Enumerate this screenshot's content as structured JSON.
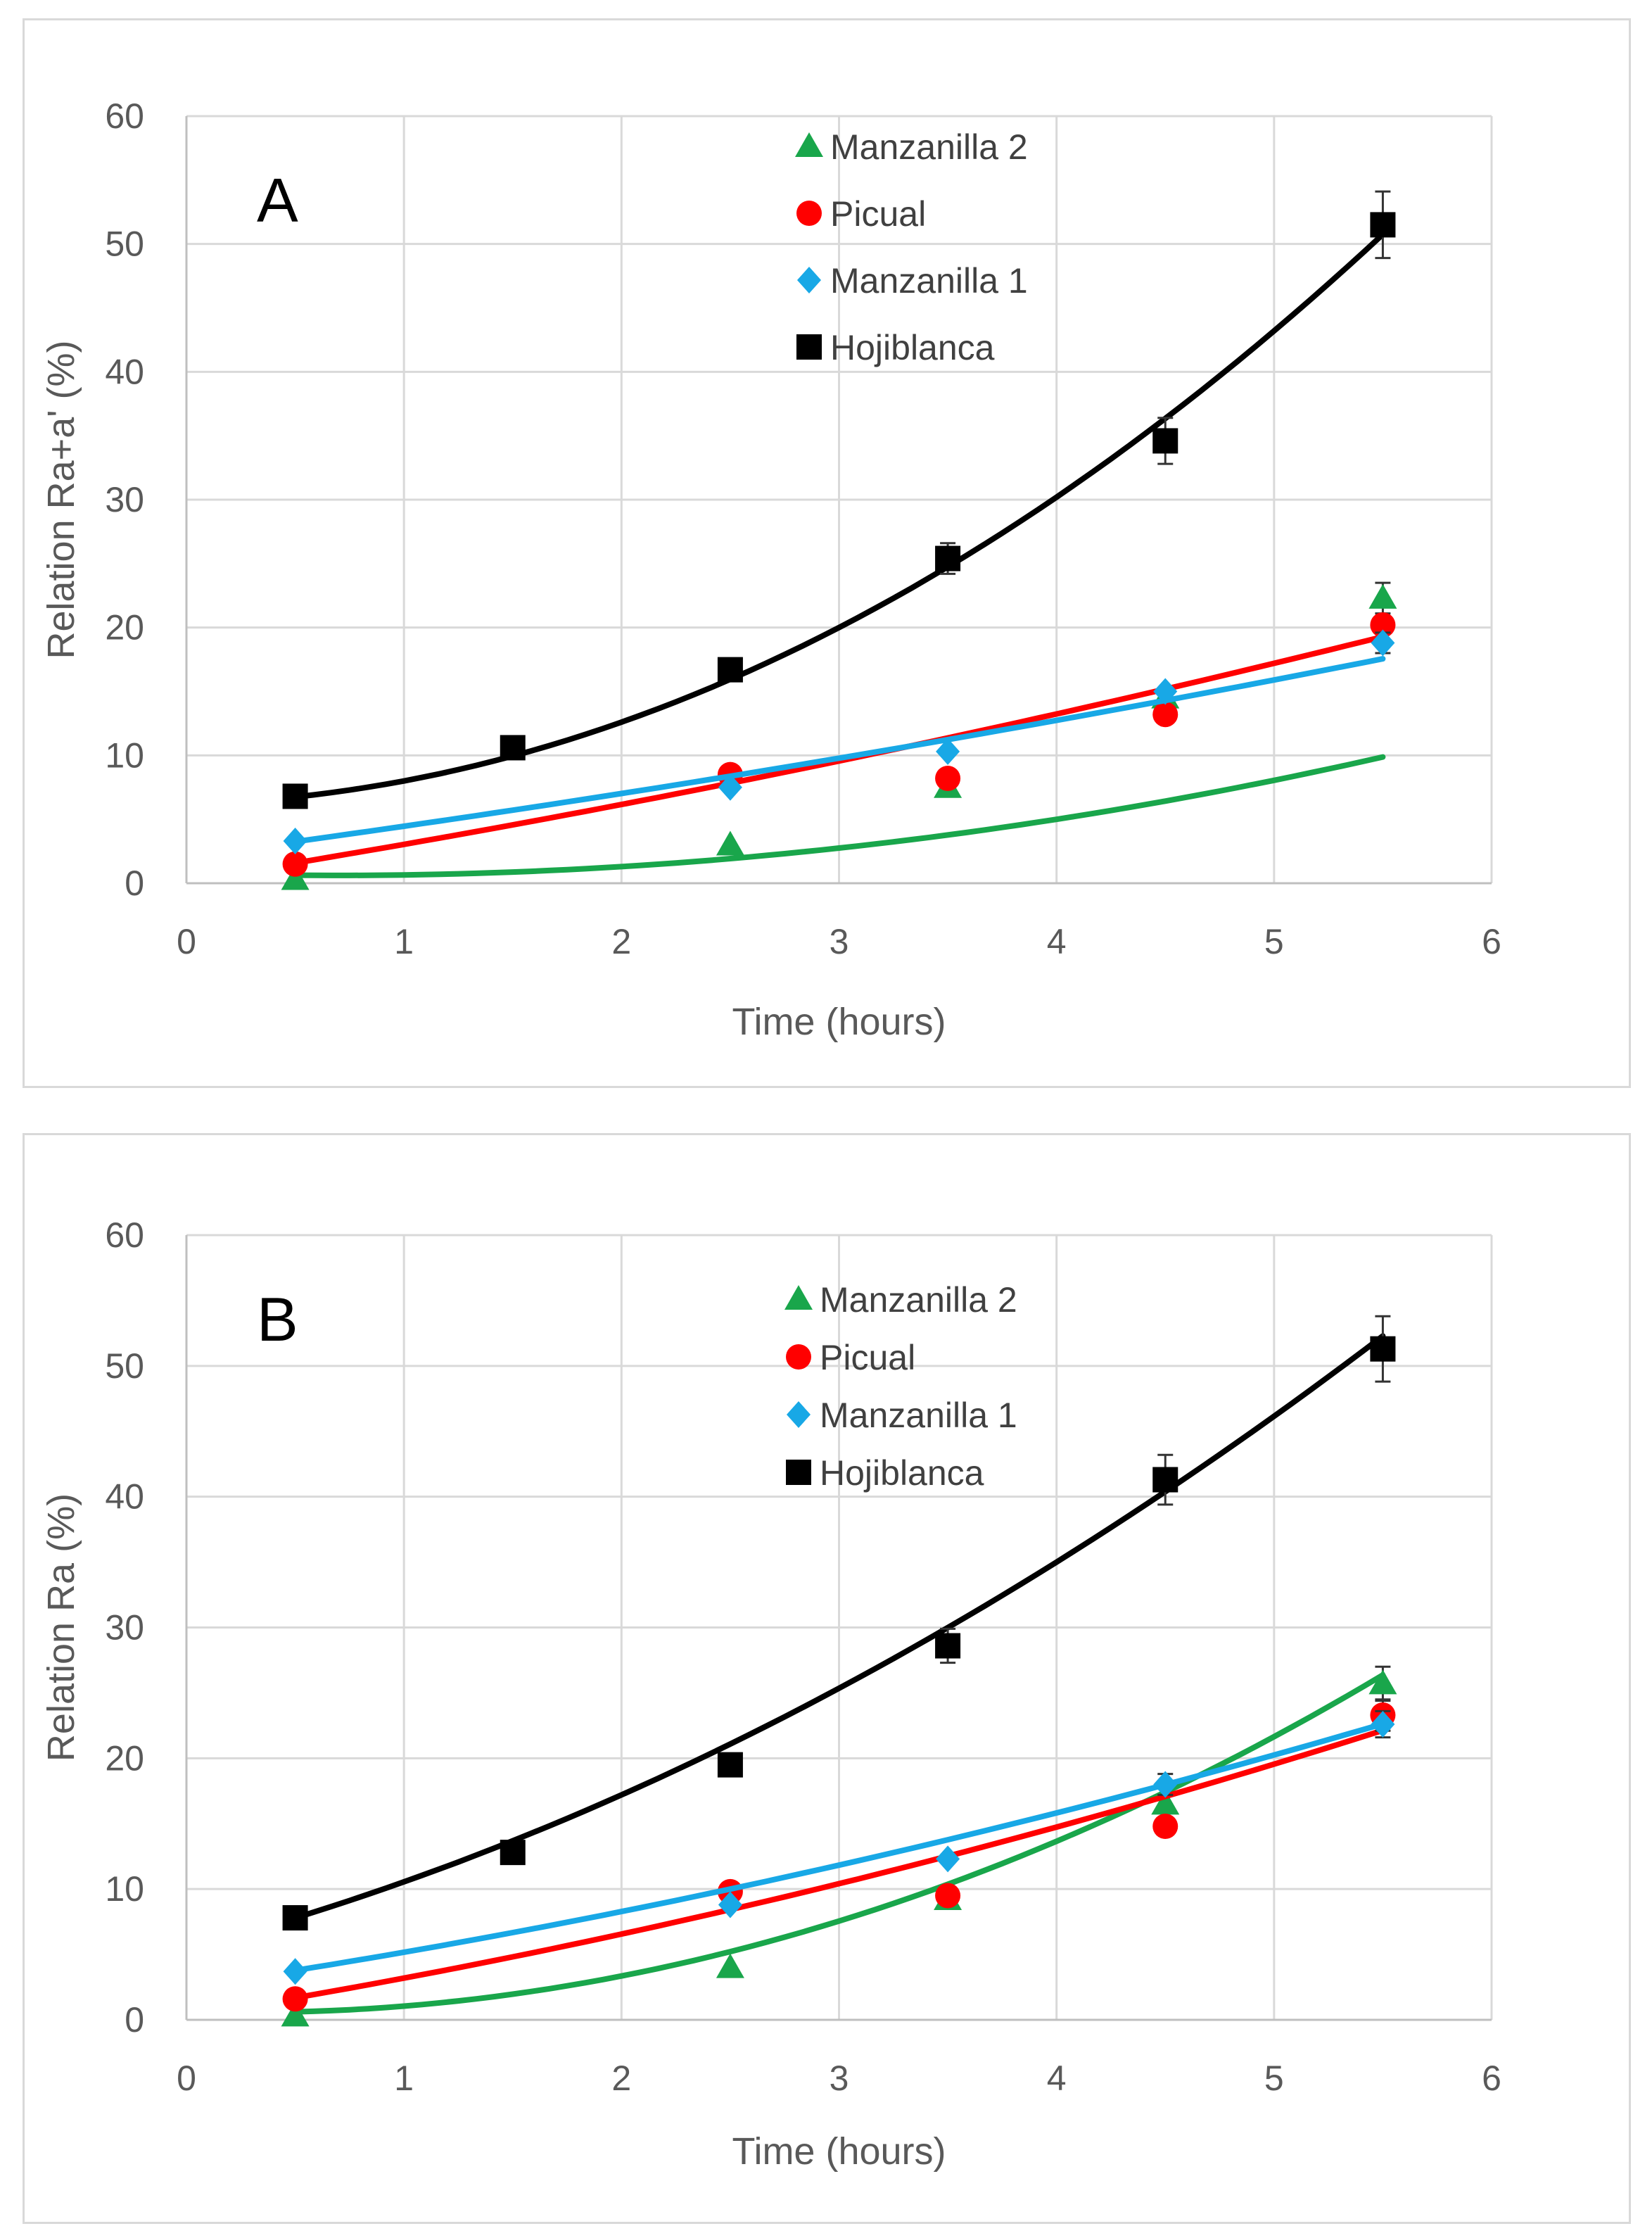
{
  "chart_data": [
    {
      "type": "scatter",
      "panel_label": "A",
      "xlabel": "Time (hours)",
      "ylabel": "Relation Ra+a' (%)",
      "xlim": [
        0,
        6
      ],
      "ylim": [
        0,
        60
      ],
      "x_ticks": [
        "0",
        "1",
        "2",
        "3",
        "4",
        "5",
        "6"
      ],
      "y_ticks": [
        "0",
        "10",
        "20",
        "30",
        "40",
        "50",
        "60"
      ],
      "grid": true,
      "legend_position": "top-center",
      "trendline": "polynomial",
      "series": [
        {
          "name": "Manzanilla 2",
          "marker": "triangle",
          "color": "#19a64b",
          "x": [
            0.5,
            2.5,
            3.5,
            4.5,
            5.5
          ],
          "y": [
            0.3,
            3.0,
            7.5,
            14.5,
            22.3
          ],
          "err": [
            0,
            0,
            0,
            0,
            1.2
          ],
          "fit": [
            0.8,
            -0.55,
            0.4
          ]
        },
        {
          "name": "Picual",
          "marker": "circle",
          "color": "#ff0000",
          "x": [
            0.5,
            2.5,
            3.5,
            4.5,
            5.5
          ],
          "y": [
            1.5,
            8.5,
            8.2,
            13.2,
            20.2
          ],
          "err": [
            0,
            0,
            0,
            0,
            0
          ],
          "fit": [
            0.2,
            2.7,
            0.14
          ]
        },
        {
          "name": "Manzanilla 1",
          "marker": "diamond",
          "color": "#18a8e6",
          "x": [
            0.5,
            2.5,
            3.5,
            4.5,
            5.5
          ],
          "y": [
            3.3,
            7.5,
            10.3,
            15.0,
            18.8
          ],
          "err": [
            0,
            0,
            0,
            0,
            0.8
          ],
          "fit": [
            2.1,
            2.26,
            0.1
          ]
        },
        {
          "name": "Hojiblanca",
          "marker": "square",
          "color": "#000000",
          "x": [
            0.5,
            1.5,
            2.5,
            3.5,
            4.5,
            5.5
          ],
          "y": [
            6.8,
            10.6,
            16.7,
            25.4,
            34.6,
            51.5
          ],
          "err": [
            0,
            0,
            0,
            1.2,
            1.8,
            2.6
          ],
          "fit": [
            6.2,
            0.4,
            1.4
          ]
        }
      ]
    },
    {
      "type": "scatter",
      "panel_label": "B",
      "xlabel": "Time (hours)",
      "ylabel": "Relation Ra (%)",
      "xlim": [
        0,
        6
      ],
      "ylim": [
        0,
        60
      ],
      "x_ticks": [
        "0",
        "1",
        "2",
        "3",
        "4",
        "5",
        "6"
      ],
      "y_ticks": [
        "0",
        "10",
        "20",
        "30",
        "40",
        "50",
        "60"
      ],
      "grid": true,
      "legend_position": "top-center",
      "trendline": "polynomial",
      "series": [
        {
          "name": "Manzanilla 2",
          "marker": "triangle",
          "color": "#19a64b",
          "x": [
            0.5,
            2.5,
            3.5,
            4.5,
            5.5
          ],
          "y": [
            0.3,
            4.0,
            9.2,
            16.5,
            25.7
          ],
          "err": [
            0,
            0,
            0,
            0,
            1.3
          ],
          "fit": [
            0.65,
            -0.55,
            0.95
          ]
        },
        {
          "name": "Picual",
          "marker": "circle",
          "color": "#ff0000",
          "x": [
            0.5,
            2.5,
            3.5,
            4.5,
            5.5
          ],
          "y": [
            1.6,
            9.8,
            9.5,
            14.8,
            23.3
          ],
          "err": [
            0,
            0,
            0,
            0,
            1.2
          ],
          "fit": [
            0.3,
            2.65,
            0.24
          ]
        },
        {
          "name": "Manzanilla 1",
          "marker": "diamond",
          "color": "#18a8e6",
          "x": [
            0.5,
            2.5,
            3.5,
            4.5,
            5.5
          ],
          "y": [
            3.7,
            8.8,
            12.3,
            18.0,
            22.6
          ],
          "err": [
            0,
            0,
            0,
            0.8,
            1.0
          ],
          "fit": [
            2.5,
            2.45,
            0.22
          ]
        },
        {
          "name": "Hojiblanca",
          "marker": "square",
          "color": "#000000",
          "x": [
            0.5,
            1.5,
            2.5,
            3.5,
            4.5,
            5.5
          ],
          "y": [
            7.8,
            12.8,
            19.5,
            28.6,
            41.3,
            51.3
          ],
          "err": [
            0,
            0,
            0,
            1.3,
            1.9,
            2.5
          ],
          "fit": [
            5.4,
            4.4,
            0.75
          ]
        }
      ]
    }
  ]
}
